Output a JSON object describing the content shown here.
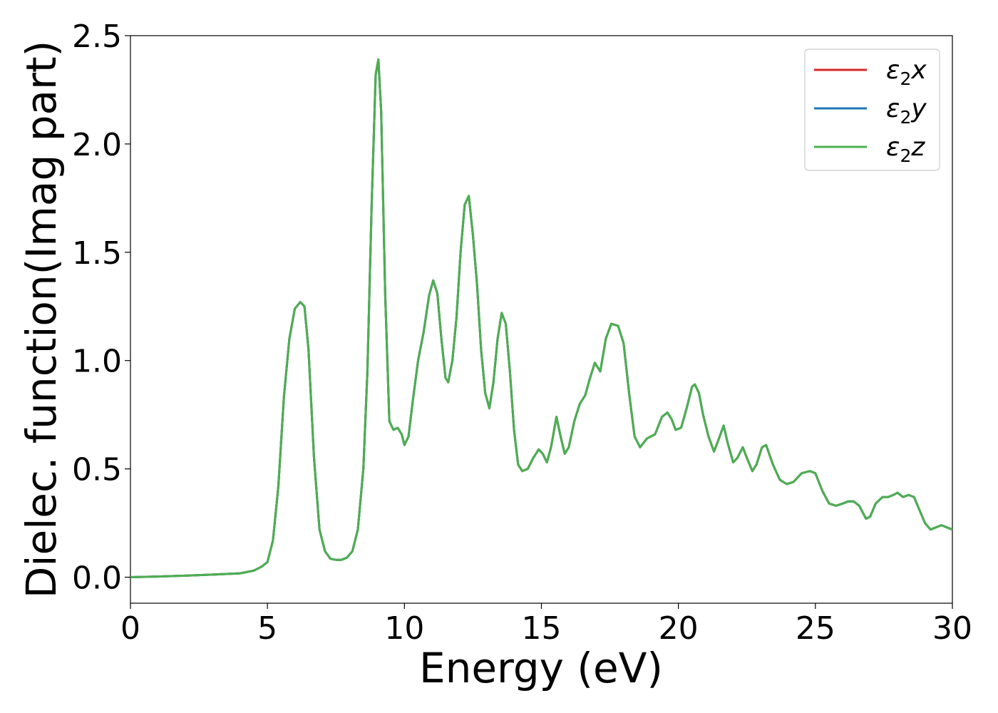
{
  "chart_data": {
    "type": "line",
    "title": "",
    "xlabel": "Energy (eV)",
    "ylabel": "Dielec. function(Imag part)",
    "xlim": [
      0,
      30
    ],
    "ylim": [
      -0.12,
      2.5
    ],
    "xticks": [
      0,
      5,
      10,
      15,
      20,
      25,
      30
    ],
    "xtick_labels": [
      "0",
      "5",
      "10",
      "15",
      "20",
      "25",
      "30"
    ],
    "yticks": [
      0.0,
      0.5,
      1.0,
      1.5,
      2.0,
      2.5
    ],
    "ytick_labels": [
      "0.0",
      "0.5",
      "1.0",
      "1.5",
      "2.0",
      "2.5"
    ],
    "grid": false,
    "legend_position": "top-right",
    "series": [
      {
        "name_base": "ε",
        "name_sub": "2",
        "name_var": "x",
        "color": "#d62728"
      },
      {
        "name_base": "ε",
        "name_sub": "2",
        "name_var": "y",
        "color": "#1f77b4"
      },
      {
        "name_base": "ε",
        "name_sub": "2",
        "name_var": "z",
        "color": "#4caf50"
      }
    ],
    "x": [
      0,
      1,
      2,
      3,
      4,
      4.5,
      4.8,
      5.0,
      5.2,
      5.4,
      5.6,
      5.8,
      6.0,
      6.2,
      6.35,
      6.5,
      6.7,
      6.9,
      7.1,
      7.3,
      7.5,
      7.7,
      7.9,
      8.1,
      8.3,
      8.5,
      8.65,
      8.8,
      8.95,
      9.05,
      9.15,
      9.3,
      9.45,
      9.6,
      9.75,
      9.9,
      10.0,
      10.15,
      10.3,
      10.5,
      10.7,
      10.9,
      11.05,
      11.2,
      11.35,
      11.5,
      11.6,
      11.75,
      11.9,
      12.05,
      12.2,
      12.35,
      12.5,
      12.65,
      12.8,
      12.95,
      13.1,
      13.25,
      13.4,
      13.55,
      13.7,
      13.85,
      14.0,
      14.15,
      14.3,
      14.5,
      14.7,
      14.9,
      15.05,
      15.2,
      15.35,
      15.55,
      15.7,
      15.85,
      16.0,
      16.2,
      16.4,
      16.6,
      16.75,
      16.95,
      17.15,
      17.35,
      17.55,
      17.8,
      18.0,
      18.2,
      18.4,
      18.6,
      18.85,
      19.0,
      19.15,
      19.4,
      19.6,
      19.75,
      19.9,
      20.1,
      20.3,
      20.5,
      20.6,
      20.75,
      20.9,
      21.1,
      21.3,
      21.45,
      21.65,
      21.8,
      22.0,
      22.15,
      22.35,
      22.5,
      22.7,
      22.85,
      23.05,
      23.2,
      23.45,
      23.7,
      23.95,
      24.2,
      24.5,
      24.8,
      25.0,
      25.25,
      25.5,
      25.75,
      26.0,
      26.2,
      26.4,
      26.6,
      26.85,
      27.0,
      27.2,
      27.45,
      27.65,
      27.85,
      28.0,
      28.2,
      28.4,
      28.6,
      28.8,
      29.0,
      29.2,
      29.4,
      29.6,
      29.8,
      30.0
    ],
    "y": [
      0.0,
      0.003,
      0.007,
      0.012,
      0.018,
      0.03,
      0.05,
      0.07,
      0.17,
      0.42,
      0.83,
      1.1,
      1.24,
      1.27,
      1.25,
      1.05,
      0.55,
      0.22,
      0.12,
      0.085,
      0.08,
      0.08,
      0.09,
      0.12,
      0.22,
      0.5,
      0.95,
      1.7,
      2.32,
      2.39,
      2.15,
      1.3,
      0.72,
      0.68,
      0.69,
      0.66,
      0.61,
      0.65,
      0.81,
      1.0,
      1.13,
      1.3,
      1.37,
      1.31,
      1.1,
      0.92,
      0.9,
      1.0,
      1.2,
      1.5,
      1.72,
      1.76,
      1.58,
      1.35,
      1.05,
      0.85,
      0.78,
      0.9,
      1.1,
      1.22,
      1.17,
      0.95,
      0.68,
      0.52,
      0.49,
      0.5,
      0.55,
      0.59,
      0.57,
      0.53,
      0.6,
      0.74,
      0.65,
      0.57,
      0.6,
      0.72,
      0.8,
      0.84,
      0.91,
      0.99,
      0.95,
      1.1,
      1.17,
      1.16,
      1.08,
      0.85,
      0.65,
      0.6,
      0.64,
      0.65,
      0.66,
      0.74,
      0.76,
      0.73,
      0.68,
      0.69,
      0.78,
      0.88,
      0.89,
      0.85,
      0.75,
      0.65,
      0.58,
      0.63,
      0.7,
      0.62,
      0.53,
      0.55,
      0.6,
      0.55,
      0.49,
      0.52,
      0.6,
      0.61,
      0.52,
      0.45,
      0.43,
      0.44,
      0.48,
      0.49,
      0.48,
      0.4,
      0.34,
      0.33,
      0.34,
      0.35,
      0.35,
      0.33,
      0.27,
      0.28,
      0.34,
      0.37,
      0.37,
      0.38,
      0.39,
      0.37,
      0.38,
      0.37,
      0.31,
      0.25,
      0.22,
      0.23,
      0.24,
      0.23,
      0.22
    ]
  }
}
